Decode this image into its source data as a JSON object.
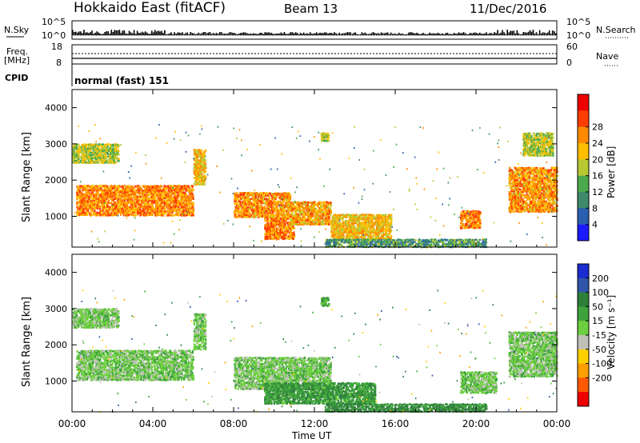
{
  "header": {
    "station": "Hokkaido East (fitACF)",
    "beam": "Beam 13",
    "date": "11/Dec/2016"
  },
  "nsky_panel": {
    "label": "N.Sky",
    "ytick_top": "10^5",
    "ytick_bottom": "10^0",
    "right_label": "N.Search",
    "right_tick_top": "10^5",
    "right_tick_bottom": "10^0"
  },
  "freq_panel": {
    "label_line1": "Freq.",
    "label_line2": "[MHz]",
    "ytick_top": "18",
    "ytick_bottom": "8",
    "right_label": "Nave",
    "right_tick_top": "60",
    "right_tick_bottom": "0"
  },
  "cpid_panel": {
    "label": "CPID",
    "mode_text": "normal (fast) 151"
  },
  "chart_data": [
    {
      "type": "heatmap",
      "name": "power",
      "ylabel": "Slant Range [km]",
      "xlabel": "Time UT",
      "yticks": [
        "1000",
        "2000",
        "3000",
        "4000"
      ],
      "ylim": [
        150,
        4500
      ],
      "colorbar": {
        "label": "Power [dB]",
        "ticks": [
          "4",
          "8",
          "12",
          "16",
          "20",
          "24",
          "28"
        ],
        "colors": [
          "#1a1aff",
          "#2a5fb0",
          "#3f8a6a",
          "#4caa4c",
          "#b8c830",
          "#ffbf00",
          "#ff8a00",
          "#ff3d00",
          "#ee0000"
        ]
      },
      "regions": [
        {
          "t0": 0.2,
          "t1": 6.0,
          "r0": 1050,
          "r1": 1900,
          "value": 26
        },
        {
          "t0": 0.0,
          "t1": 2.3,
          "r0": 2500,
          "r1": 3050,
          "value": 18
        },
        {
          "t0": 6.0,
          "t1": 6.6,
          "r0": 1900,
          "r1": 2900,
          "value": 22
        },
        {
          "t0": 8.0,
          "t1": 10.8,
          "r0": 1000,
          "r1": 1700,
          "value": 25
        },
        {
          "t0": 9.5,
          "t1": 11.0,
          "r0": 400,
          "r1": 1000,
          "value": 27
        },
        {
          "t0": 10.8,
          "t1": 12.8,
          "r0": 800,
          "r1": 1450,
          "value": 24
        },
        {
          "t0": 12.8,
          "t1": 15.8,
          "r0": 400,
          "r1": 1100,
          "value": 22
        },
        {
          "t0": 12.5,
          "t1": 20.5,
          "r0": 180,
          "r1": 420,
          "value": 12
        },
        {
          "t0": 19.2,
          "t1": 20.2,
          "r0": 700,
          "r1": 1200,
          "value": 26
        },
        {
          "t0": 21.6,
          "t1": 24.0,
          "r0": 1150,
          "r1": 2400,
          "value": 25
        },
        {
          "t0": 22.3,
          "t1": 23.8,
          "r0": 2700,
          "r1": 3350,
          "value": 18
        },
        {
          "t0": 12.3,
          "t1": 12.7,
          "r0": 3100,
          "r1": 3350,
          "value": 18
        }
      ]
    },
    {
      "type": "heatmap",
      "name": "velocity",
      "ylabel": "Slant Range [km]",
      "xlabel": "Time UT",
      "yticks": [
        "1000",
        "2000",
        "3000",
        "4000"
      ],
      "ylim": [
        150,
        4500
      ],
      "colorbar": {
        "label": "Velocity [m s⁻¹]",
        "ticks": [
          "200",
          "100",
          "50",
          "15",
          "-15",
          "-50",
          "-100",
          "-200"
        ],
        "colors": [
          "#1a2bd0",
          "#2f55a8",
          "#2e7f3a",
          "#3da33d",
          "#6ccf3d",
          "#c0c0b8",
          "#ffd000",
          "#ff9e00",
          "#ff5a00",
          "#ee0000"
        ]
      },
      "regions": [
        {
          "t0": 0.2,
          "t1": 6.0,
          "r0": 1050,
          "r1": 1900,
          "value": 0
        },
        {
          "t0": 0.0,
          "t1": 2.3,
          "r0": 2500,
          "r1": 3050,
          "value": 0
        },
        {
          "t0": 8.0,
          "t1": 12.8,
          "r0": 800,
          "r1": 1700,
          "value": 0
        },
        {
          "t0": 9.5,
          "t1": 15.0,
          "r0": 400,
          "r1": 1000,
          "value": 40
        },
        {
          "t0": 12.5,
          "t1": 20.5,
          "r0": 180,
          "r1": 420,
          "value": 60
        },
        {
          "t0": 19.2,
          "t1": 21.0,
          "r0": 700,
          "r1": 1300,
          "value": 0
        },
        {
          "t0": 21.6,
          "t1": 24.0,
          "r0": 1150,
          "r1": 2400,
          "value": 0
        },
        {
          "t0": 6.0,
          "t1": 6.6,
          "r0": 1900,
          "r1": 2900,
          "value": 0
        },
        {
          "t0": 12.3,
          "t1": 12.7,
          "r0": 3100,
          "r1": 3350,
          "value": 30
        }
      ]
    }
  ],
  "time_axis": {
    "ticks": [
      "00:00",
      "04:00",
      "08:00",
      "12:00",
      "16:00",
      "20:00",
      "00:00"
    ],
    "label": "Time UT"
  }
}
